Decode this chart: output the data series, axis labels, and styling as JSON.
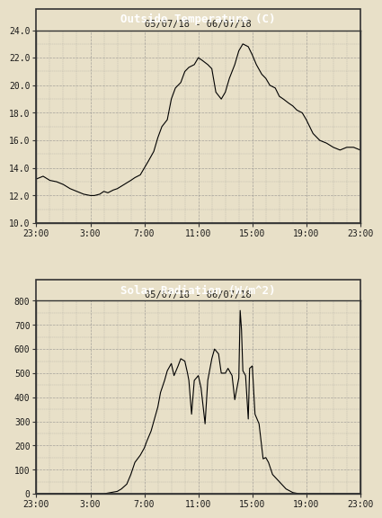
{
  "bg_color": "#e8e0c8",
  "plot_bg_color": "#e8e0c8",
  "title_bg_color": "#000000",
  "title_text_color": "#ffffff",
  "line_color": "#000000",
  "grid_color": "#888888",
  "border_color": "#333333",
  "outer_bg": "#e8e0c8",
  "temp_title": "Outside Temperature (C)",
  "temp_subtitle": "05/07/18 - 06/07/18",
  "temp_ylim": [
    10.0,
    24.0
  ],
  "temp_yticks": [
    10.0,
    12.0,
    14.0,
    16.0,
    18.0,
    20.0,
    22.0,
    24.0
  ],
  "temp_yticklabels": [
    "10.0",
    "12.0",
    "14.0",
    "16.0",
    "18.0",
    "20.0",
    "22.0",
    "24.0"
  ],
  "solar_title": "Solar Radiation (W/m^2)",
  "solar_subtitle": "05/07/18 - 06/07/18",
  "solar_ylim": [
    0,
    800
  ],
  "solar_yticks": [
    0,
    100,
    200,
    300,
    400,
    500,
    600,
    700,
    800
  ],
  "solar_yticklabels": [
    "0",
    "100",
    "200",
    "300",
    "400",
    "500",
    "600",
    "700",
    "800"
  ],
  "xtick_labels": [
    "23:00",
    "3:00",
    "7:00",
    "11:00",
    "15:00",
    "19:00",
    "23:00"
  ],
  "xtick_positions": [
    0,
    4,
    8,
    12,
    16,
    20,
    24
  ],
  "temp_x": [
    0,
    0.5,
    1,
    1.5,
    2,
    2.5,
    3,
    3.5,
    4,
    4.3,
    4.7,
    5,
    5.3,
    5.7,
    6,
    6.5,
    7,
    7.3,
    7.7,
    8,
    8.3,
    8.7,
    9,
    9.3,
    9.7,
    10,
    10.3,
    10.7,
    11,
    11.3,
    11.7,
    12,
    12.3,
    12.7,
    13,
    13.3,
    13.7,
    14,
    14.3,
    14.7,
    15,
    15.3,
    15.7,
    16,
    16.3,
    16.7,
    17,
    17.3,
    17.7,
    18,
    18.3,
    18.7,
    19,
    19.3,
    19.7,
    20,
    20.5,
    21,
    21.5,
    22,
    22.5,
    23,
    23.5,
    24
  ],
  "temp_y": [
    13.2,
    13.4,
    13.1,
    13.0,
    12.8,
    12.5,
    12.3,
    12.1,
    12.0,
    12.0,
    12.1,
    12.3,
    12.2,
    12.4,
    12.5,
    12.8,
    13.1,
    13.3,
    13.5,
    14.0,
    14.5,
    15.2,
    16.2,
    17.0,
    17.5,
    19.0,
    19.8,
    20.2,
    21.0,
    21.3,
    21.5,
    22.0,
    21.8,
    21.5,
    21.2,
    19.5,
    19.0,
    19.5,
    20.5,
    21.5,
    22.5,
    23.0,
    22.8,
    22.2,
    21.5,
    20.8,
    20.5,
    20.0,
    19.8,
    19.2,
    19.0,
    18.7,
    18.5,
    18.2,
    18.0,
    17.5,
    16.5,
    16.0,
    15.8,
    15.5,
    15.3,
    15.5,
    15.5,
    15.3
  ],
  "solar_x": [
    0,
    0.5,
    1,
    1.5,
    2,
    2.5,
    3,
    3.5,
    4,
    4.5,
    5,
    5.5,
    6,
    6.3,
    6.7,
    7,
    7.3,
    7.7,
    8,
    8.2,
    8.5,
    8.7,
    9,
    9.2,
    9.5,
    9.7,
    10,
    10.2,
    10.5,
    10.7,
    11,
    11.2,
    11.3,
    11.5,
    11.7,
    12,
    12.2,
    12.5,
    12.7,
    13,
    13.2,
    13.5,
    13.7,
    14,
    14.2,
    14.5,
    14.7,
    15,
    15.1,
    15.2,
    15.3,
    15.5,
    15.7,
    15.8,
    16,
    16.2,
    16.5,
    16.8,
    17,
    17.2,
    17.5,
    18,
    18.5,
    19,
    19.5,
    20,
    20.5,
    21,
    21.5,
    22,
    22.5,
    23,
    23.5,
    24
  ],
  "solar_y": [
    0,
    0,
    0,
    0,
    0,
    0,
    0,
    0,
    0,
    0,
    0,
    5,
    10,
    20,
    40,
    80,
    130,
    160,
    190,
    220,
    260,
    300,
    360,
    420,
    470,
    510,
    540,
    490,
    530,
    560,
    550,
    500,
    470,
    330,
    470,
    490,
    440,
    290,
    470,
    560,
    600,
    580,
    500,
    500,
    520,
    490,
    390,
    480,
    760,
    680,
    510,
    490,
    310,
    520,
    530,
    330,
    290,
    145,
    150,
    130,
    80,
    50,
    20,
    5,
    0,
    0,
    0,
    0,
    0,
    0,
    0,
    0,
    0,
    0
  ]
}
